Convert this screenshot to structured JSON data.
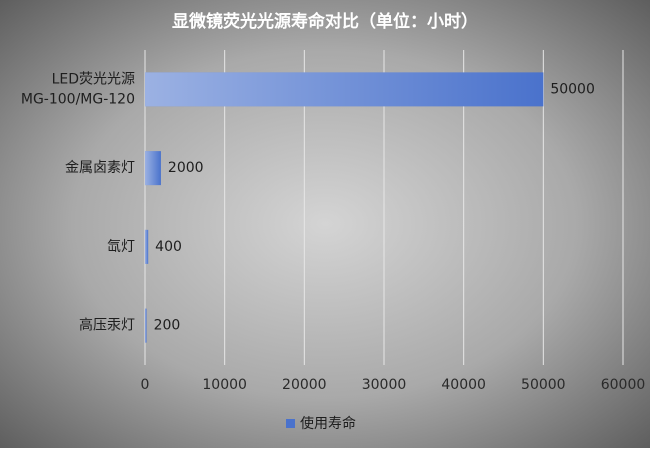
{
  "chart_data": {
    "type": "bar",
    "orientation": "horizontal",
    "title": "显微镜荧光光源寿命对比（单位：小时）",
    "categories": [
      "LED荧光光源\nMG-100/MG-120",
      "金属卤素灯",
      "氙灯",
      "高压汞灯"
    ],
    "series": [
      {
        "name": "使用寿命",
        "color": "#4a72cc",
        "values": [
          50000,
          2000,
          400,
          200
        ]
      }
    ],
    "xlim": [
      0,
      60000
    ],
    "xticks": [
      0,
      10000,
      20000,
      30000,
      40000,
      50000,
      60000
    ],
    "grid": true,
    "legend": "bottom"
  }
}
